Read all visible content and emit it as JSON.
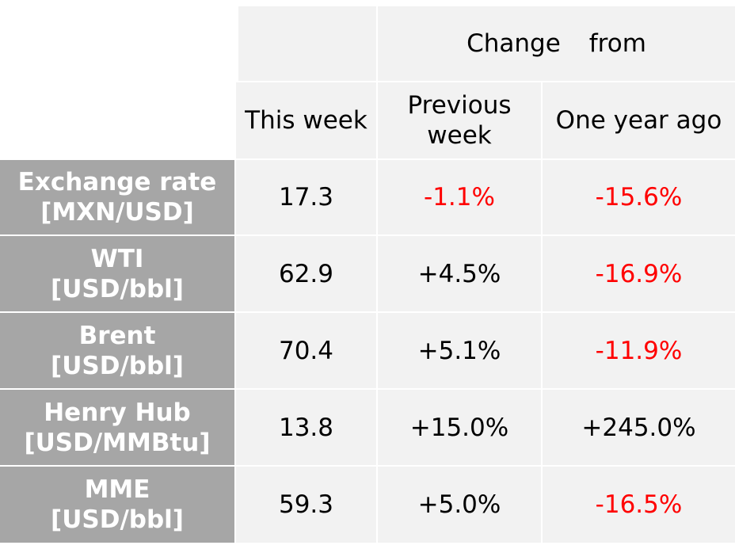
{
  "header": {
    "group_word1": "Change",
    "group_word2": "from",
    "this_week": "This week",
    "previous_week_line1": "Previous",
    "previous_week_line2": "week",
    "one_year_ago": "One year ago"
  },
  "rows": [
    {
      "label_line1": "Exchange rate",
      "label_line2": "[MXN/USD]",
      "this_week": "17.3",
      "prev_week": "-1.1%",
      "year_ago": "-15.6%"
    },
    {
      "label_line1": "WTI",
      "label_line2": "[USD/bbl]",
      "this_week": "62.9",
      "prev_week": "+4.5%",
      "year_ago": "-16.9%"
    },
    {
      "label_line1": "Brent",
      "label_line2": "[USD/bbl]",
      "this_week": "70.4",
      "prev_week": "+5.1%",
      "year_ago": "-11.9%"
    },
    {
      "label_line1": "Henry Hub",
      "label_line2": "[USD/MMBtu]",
      "this_week": "13.8",
      "prev_week": "+15.0%",
      "year_ago": "+245.0%"
    },
    {
      "label_line1": "MME",
      "label_line2": "[USD/bbl]",
      "this_week": "59.3",
      "prev_week": "+5.0%",
      "year_ago": "-16.5%"
    }
  ],
  "colors": {
    "negative": "#ff0000",
    "positive": "#000000",
    "label_bg": "#a6a6a6",
    "cell_bg": "#f2f2f2"
  }
}
